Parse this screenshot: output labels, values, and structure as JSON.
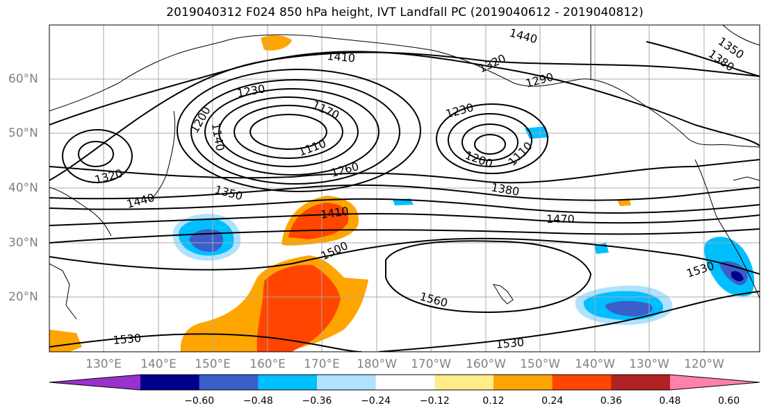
{
  "title": "2019040312 F024 850 hPa height, IVT Landfall PC (2019040612 - 2019040812)",
  "colors": {
    "border": "#000000",
    "grid": "#a9a9a9",
    "label": "#808080",
    "colorbar": [
      "#9932cc",
      "#00008b",
      "#3a5fcd",
      "#00bfff",
      "#b0e2ff",
      "#ffffff",
      "#ffec8b",
      "#ffa500",
      "#ff4500",
      "#b22222",
      "#ff82ab"
    ]
  },
  "latitude_labels": [
    "60°N",
    "50°N",
    "40°N",
    "30°N",
    "20°N"
  ],
  "longitude_labels": [
    "130°E",
    "140°E",
    "150°E",
    "160°E",
    "170°E",
    "180°W",
    "170°W",
    "160°W",
    "150°W",
    "140°W",
    "130°W",
    "120°W"
  ],
  "contour_labels": [
    "1440",
    "1410",
    "1320",
    "1350",
    "1380",
    "1230",
    "1170",
    "1200",
    "1140",
    "1110",
    "1290",
    "1230",
    "1200",
    "1110",
    "1260",
    "1320",
    "1350",
    "1440",
    "1380",
    "1410",
    "1470",
    "1500",
    "1530",
    "1560",
    "1530",
    "1530"
  ],
  "colorbar": {
    "ticks": [
      "−0.60",
      "−0.48",
      "−0.36",
      "−0.24",
      "−0.12",
      "0.12",
      "0.24",
      "0.36",
      "0.48",
      "0.60"
    ],
    "extend": "both"
  }
}
